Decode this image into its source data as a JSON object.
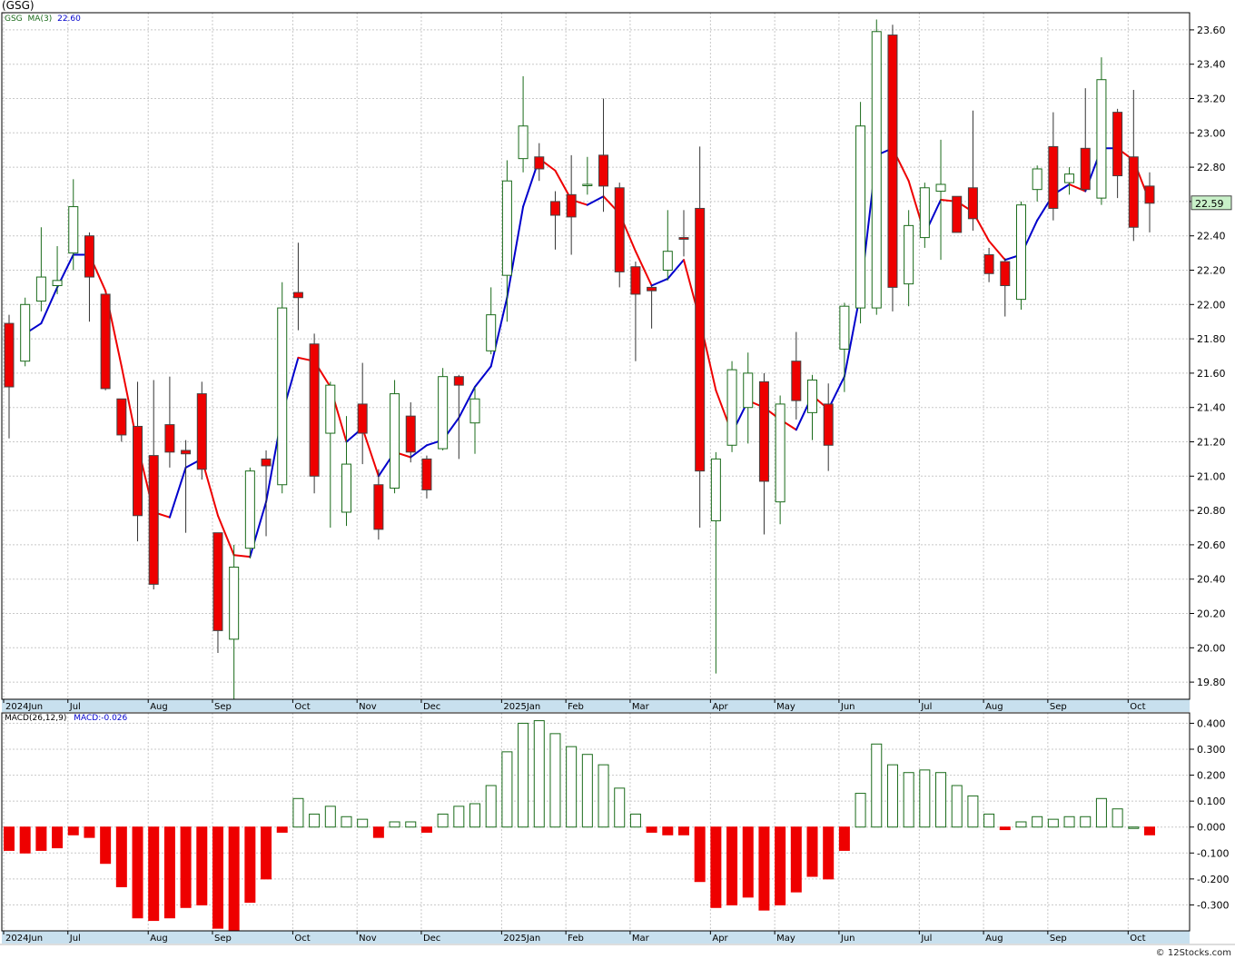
{
  "title": "(GSG)",
  "legend_price": {
    "symbol": "GSG",
    "ma_label": "MA(3)",
    "ma_value": "22.60"
  },
  "legend_macd": {
    "label": "MACD(26,12,9)",
    "value_label": "MACD:-0.026"
  },
  "last_price_label": "22.59",
  "credit": "© 12Stocks.com",
  "colors": {
    "up": "#1a6b1a",
    "down": "#ee0000",
    "ma_up": "#0000cc",
    "ma_down": "#ee0000",
    "grid": "#c8c8c8",
    "axis_band": "#c8e0ee",
    "price_badge": "#c8f0c8"
  },
  "chart_data": [
    {
      "type": "candlestick",
      "symbol": "GSG",
      "period": "weekly",
      "ylim": [
        19.7,
        23.7
      ],
      "y_ticks": [
        "19.80",
        "20.00",
        "20.20",
        "20.40",
        "20.60",
        "20.80",
        "21.00",
        "21.20",
        "21.40",
        "21.60",
        "21.80",
        "22.00",
        "22.20",
        "22.40",
        "22.60",
        "22.80",
        "23.00",
        "23.20",
        "23.40",
        "23.60"
      ],
      "x_labels": [
        {
          "label": "2024Jun",
          "i": 0
        },
        {
          "label": "Jul",
          "i": 4
        },
        {
          "label": "Aug",
          "i": 9
        },
        {
          "label": "Sep",
          "i": 13
        },
        {
          "label": "Oct",
          "i": 18
        },
        {
          "label": "Nov",
          "i": 22
        },
        {
          "label": "Dec",
          "i": 26
        },
        {
          "label": "2025Jan",
          "i": 31
        },
        {
          "label": "Feb",
          "i": 35
        },
        {
          "label": "Mar",
          "i": 39
        },
        {
          "label": "Apr",
          "i": 44
        },
        {
          "label": "May",
          "i": 48
        },
        {
          "label": "Jun",
          "i": 52
        },
        {
          "label": "Jul",
          "i": 57
        },
        {
          "label": "Aug",
          "i": 61
        },
        {
          "label": "Sep",
          "i": 65
        },
        {
          "label": "Oct",
          "i": 70
        }
      ],
      "candles": [
        {
          "o": 21.89,
          "h": 21.94,
          "l": 21.22,
          "c": 21.52
        },
        {
          "o": 21.67,
          "h": 22.04,
          "l": 21.64,
          "c": 22.0
        },
        {
          "o": 22.02,
          "h": 22.45,
          "l": 21.96,
          "c": 22.16
        },
        {
          "o": 22.11,
          "h": 22.34,
          "l": 22.06,
          "c": 22.14
        },
        {
          "o": 22.3,
          "h": 22.73,
          "l": 22.2,
          "c": 22.57
        },
        {
          "o": 22.4,
          "h": 22.42,
          "l": 21.9,
          "c": 22.16
        },
        {
          "o": 22.06,
          "h": 22.06,
          "l": 21.5,
          "c": 21.51
        },
        {
          "o": 21.45,
          "h": 21.44,
          "l": 21.2,
          "c": 21.24
        },
        {
          "o": 21.29,
          "h": 21.55,
          "l": 20.62,
          "c": 20.77
        },
        {
          "o": 21.12,
          "h": 21.56,
          "l": 20.34,
          "c": 20.37
        },
        {
          "o": 21.3,
          "h": 21.58,
          "l": 21.05,
          "c": 21.14
        },
        {
          "o": 21.15,
          "h": 21.21,
          "l": 20.67,
          "c": 21.13
        },
        {
          "o": 21.48,
          "h": 21.55,
          "l": 20.98,
          "c": 21.04
        },
        {
          "o": 20.67,
          "h": 20.67,
          "l": 19.97,
          "c": 20.1
        },
        {
          "o": 20.05,
          "h": 20.6,
          "l": 19.7,
          "c": 20.47
        },
        {
          "o": 20.58,
          "h": 21.05,
          "l": 20.52,
          "c": 21.03
        },
        {
          "o": 21.1,
          "h": 21.15,
          "l": 20.65,
          "c": 21.06
        },
        {
          "o": 20.95,
          "h": 22.13,
          "l": 20.9,
          "c": 21.98
        },
        {
          "o": 22.07,
          "h": 22.36,
          "l": 21.85,
          "c": 22.04
        },
        {
          "o": 21.77,
          "h": 21.83,
          "l": 20.9,
          "c": 21.0
        },
        {
          "o": 21.25,
          "h": 21.55,
          "l": 20.7,
          "c": 21.53
        },
        {
          "o": 20.79,
          "h": 21.35,
          "l": 20.71,
          "c": 21.07
        },
        {
          "o": 21.42,
          "h": 21.66,
          "l": 21.07,
          "c": 21.25
        },
        {
          "o": 20.95,
          "h": 21.04,
          "l": 20.63,
          "c": 20.69
        },
        {
          "o": 20.93,
          "h": 21.56,
          "l": 20.9,
          "c": 21.48
        },
        {
          "o": 21.35,
          "h": 21.43,
          "l": 21.08,
          "c": 21.14
        },
        {
          "o": 21.1,
          "h": 21.12,
          "l": 20.87,
          "c": 20.92
        },
        {
          "o": 21.16,
          "h": 21.63,
          "l": 21.15,
          "c": 21.58
        },
        {
          "o": 21.58,
          "h": 21.59,
          "l": 21.1,
          "c": 21.53
        },
        {
          "o": 21.31,
          "h": 21.52,
          "l": 21.13,
          "c": 21.45
        },
        {
          "o": 21.73,
          "h": 22.1,
          "l": 21.71,
          "c": 21.94
        },
        {
          "o": 22.17,
          "h": 22.84,
          "l": 21.9,
          "c": 22.72
        },
        {
          "o": 22.85,
          "h": 23.33,
          "l": 22.77,
          "c": 23.04
        },
        {
          "o": 22.86,
          "h": 22.94,
          "l": 22.72,
          "c": 22.79
        },
        {
          "o": 22.6,
          "h": 22.66,
          "l": 22.32,
          "c": 22.52
        },
        {
          "o": 22.64,
          "h": 22.87,
          "l": 22.29,
          "c": 22.51
        },
        {
          "o": 22.7,
          "h": 22.86,
          "l": 22.64,
          "c": 22.7
        },
        {
          "o": 22.87,
          "h": 23.2,
          "l": 22.54,
          "c": 22.69
        },
        {
          "o": 22.68,
          "h": 22.71,
          "l": 22.1,
          "c": 22.19
        },
        {
          "o": 22.22,
          "h": 22.25,
          "l": 21.67,
          "c": 22.06
        },
        {
          "o": 22.1,
          "h": 22.11,
          "l": 21.86,
          "c": 22.08
        },
        {
          "o": 22.2,
          "h": 22.55,
          "l": 22.14,
          "c": 22.31
        },
        {
          "o": 22.39,
          "h": 22.55,
          "l": 22.28,
          "c": 22.38
        },
        {
          "o": 22.56,
          "h": 22.92,
          "l": 20.7,
          "c": 21.03
        },
        {
          "o": 20.74,
          "h": 21.14,
          "l": 19.85,
          "c": 21.1
        },
        {
          "o": 21.18,
          "h": 21.67,
          "l": 21.14,
          "c": 21.62
        },
        {
          "o": 21.4,
          "h": 21.72,
          "l": 21.19,
          "c": 21.6
        },
        {
          "o": 21.55,
          "h": 21.6,
          "l": 20.66,
          "c": 20.97
        },
        {
          "o": 20.85,
          "h": 21.47,
          "l": 20.72,
          "c": 21.42
        },
        {
          "o": 21.67,
          "h": 21.84,
          "l": 21.33,
          "c": 21.44
        },
        {
          "o": 21.37,
          "h": 21.59,
          "l": 21.21,
          "c": 21.56
        },
        {
          "o": 21.42,
          "h": 21.54,
          "l": 21.03,
          "c": 21.18
        },
        {
          "o": 21.74,
          "h": 22.01,
          "l": 21.49,
          "c": 21.99
        },
        {
          "o": 21.98,
          "h": 23.18,
          "l": 21.89,
          "c": 23.04
        },
        {
          "o": 21.98,
          "h": 23.66,
          "l": 21.94,
          "c": 23.59
        },
        {
          "o": 23.57,
          "h": 23.63,
          "l": 21.96,
          "c": 22.1
        },
        {
          "o": 22.12,
          "h": 22.55,
          "l": 21.99,
          "c": 22.46
        },
        {
          "o": 22.39,
          "h": 22.71,
          "l": 22.33,
          "c": 22.68
        },
        {
          "o": 22.66,
          "h": 22.96,
          "l": 22.26,
          "c": 22.7
        },
        {
          "o": 22.63,
          "h": 22.63,
          "l": 22.42,
          "c": 22.42
        },
        {
          "o": 22.68,
          "h": 23.13,
          "l": 22.43,
          "c": 22.5
        },
        {
          "o": 22.29,
          "h": 22.33,
          "l": 22.13,
          "c": 22.18
        },
        {
          "o": 22.25,
          "h": 22.27,
          "l": 21.93,
          "c": 22.11
        },
        {
          "o": 22.03,
          "h": 22.6,
          "l": 21.97,
          "c": 22.58
        },
        {
          "o": 22.67,
          "h": 22.81,
          "l": 22.6,
          "c": 22.79
        },
        {
          "o": 22.92,
          "h": 23.12,
          "l": 22.49,
          "c": 22.56
        },
        {
          "o": 22.71,
          "h": 22.8,
          "l": 22.64,
          "c": 22.76
        },
        {
          "o": 22.91,
          "h": 23.26,
          "l": 22.66,
          "c": 22.67
        },
        {
          "o": 22.62,
          "h": 23.44,
          "l": 22.58,
          "c": 23.31
        },
        {
          "o": 23.12,
          "h": 23.14,
          "l": 22.62,
          "c": 22.75
        },
        {
          "o": 22.86,
          "h": 23.25,
          "l": 22.37,
          "c": 22.45
        },
        {
          "o": 22.69,
          "h": 22.77,
          "l": 22.42,
          "c": 22.59
        }
      ],
      "ma3": [
        null,
        21.83,
        21.89,
        22.1,
        22.29,
        22.29,
        22.08,
        21.64,
        21.18,
        20.79,
        20.76,
        21.05,
        21.1,
        20.77,
        20.54,
        20.53,
        20.85,
        21.36,
        21.69,
        21.67,
        21.52,
        21.2,
        21.28,
        21.0,
        21.14,
        21.11,
        21.18,
        21.21,
        21.34,
        21.52,
        21.64,
        22.04,
        22.57,
        22.85,
        22.78,
        22.61,
        22.58,
        22.63,
        22.53,
        22.31,
        22.11,
        22.15,
        22.26,
        21.91,
        21.5,
        21.25,
        21.44,
        21.4,
        21.33,
        21.27,
        21.47,
        21.39,
        21.58,
        22.07,
        22.87,
        22.91,
        22.72,
        22.41,
        22.61,
        22.6,
        22.54,
        22.37,
        22.26,
        22.29,
        22.49,
        22.64,
        22.7,
        22.66,
        22.91,
        22.91,
        22.84,
        22.6
      ]
    },
    {
      "type": "bar",
      "name": "MACD(26,12,9)",
      "ylim": [
        -0.4,
        0.44
      ],
      "y_ticks": [
        "-0.300",
        "-0.200",
        "-0.100",
        "0.000",
        "0.100",
        "0.200",
        "0.300",
        "0.400"
      ],
      "values": [
        -0.09,
        -0.1,
        -0.09,
        -0.08,
        -0.03,
        -0.04,
        -0.14,
        -0.23,
        -0.35,
        -0.36,
        -0.35,
        -0.31,
        -0.3,
        -0.39,
        -0.4,
        -0.29,
        -0.2,
        -0.02,
        0.11,
        0.05,
        0.08,
        0.04,
        0.03,
        -0.04,
        0.02,
        0.02,
        -0.02,
        0.05,
        0.08,
        0.09,
        0.16,
        0.29,
        0.4,
        0.41,
        0.36,
        0.31,
        0.28,
        0.24,
        0.15,
        0.05,
        -0.02,
        -0.03,
        -0.03,
        -0.21,
        -0.31,
        -0.3,
        -0.27,
        -0.32,
        -0.3,
        -0.25,
        -0.19,
        -0.2,
        -0.09,
        0.13,
        0.32,
        0.24,
        0.21,
        0.22,
        0.21,
        0.16,
        0.12,
        0.05,
        -0.01,
        0.02,
        0.04,
        0.03,
        0.04,
        0.04,
        0.11,
        0.07,
        0.0,
        -0.03
      ]
    }
  ]
}
